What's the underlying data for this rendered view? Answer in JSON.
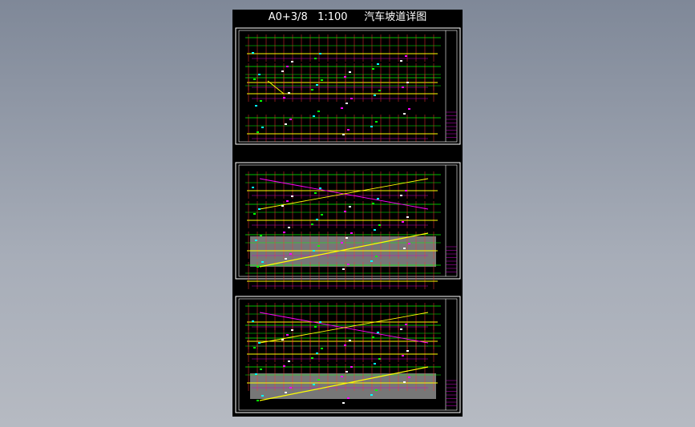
{
  "title": "A0+3/8   1:100     汽车坡道详图"
}
